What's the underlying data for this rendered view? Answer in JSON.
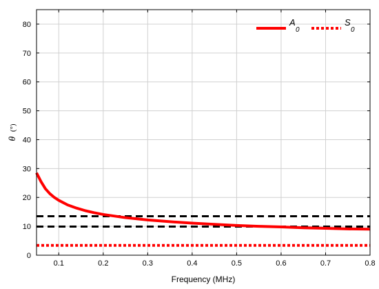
{
  "chart_data": {
    "type": "line",
    "xlabel": "Frequency (MHz)",
    "ylabel_symbol": "θ",
    "ylabel_unit": "(°)",
    "xlim": [
      0.05,
      0.8
    ],
    "ylim": [
      0,
      85
    ],
    "xticks": [
      0.1,
      0.2,
      0.3,
      0.4,
      0.5,
      0.6,
      0.7,
      0.8
    ],
    "xtick_labels": [
      "0.1",
      "0.2",
      "0.3",
      "0.4",
      "0.5",
      "0.6",
      "0.7",
      "0.8"
    ],
    "yticks": [
      0,
      10,
      20,
      30,
      40,
      50,
      60,
      70,
      80
    ],
    "ytick_labels": [
      "0",
      "10",
      "20",
      "30",
      "40",
      "50",
      "60",
      "70",
      "80"
    ],
    "grid": true,
    "legend_position": "top-right",
    "series": [
      {
        "name_main": "A",
        "name_sub": "0",
        "color": "#ff0000",
        "style": "solid",
        "x": [
          0.05,
          0.06,
          0.07,
          0.08,
          0.09,
          0.1,
          0.12,
          0.14,
          0.16,
          0.18,
          0.2,
          0.25,
          0.3,
          0.35,
          0.4,
          0.45,
          0.5,
          0.55,
          0.6,
          0.65,
          0.7,
          0.75,
          0.8
        ],
        "y": [
          28.5,
          25.5,
          23.0,
          21.3,
          20.0,
          19.0,
          17.4,
          16.3,
          15.4,
          14.7,
          14.1,
          13.0,
          12.2,
          11.6,
          11.1,
          10.7,
          10.3,
          10.0,
          9.8,
          9.5,
          9.3,
          9.1,
          9.0
        ]
      },
      {
        "name_main": "S",
        "name_sub": "0",
        "color": "#ff0000",
        "style": "dotted",
        "x": [
          0.05,
          0.8
        ],
        "y": [
          3.4,
          3.4
        ]
      }
    ],
    "reference_lines": [
      {
        "y": 13.5,
        "color": "#000000",
        "style": "dashed"
      },
      {
        "y": 9.9,
        "color": "#000000",
        "style": "dashed"
      }
    ]
  }
}
